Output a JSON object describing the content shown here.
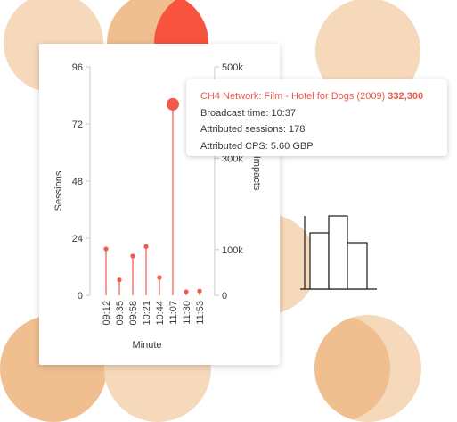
{
  "theme": {
    "accent": "#f0584a",
    "circle_light": "#f6d8bb",
    "circle_mid": "#efbf90",
    "circle_red": "#f8533f",
    "axis_color": "#c8c8c8",
    "text_color": "#3a3a3a"
  },
  "tooltip": {
    "title": "CH4 Network: Film - Hotel for Dogs (2009)",
    "impacts_value": "332,300",
    "broadcast_time": "Broadcast time: 10:37",
    "attributed_sessions": "Attributed sessions: 178",
    "attributed_cps": "Attributed CPS: 5.60 GBP"
  },
  "chart_data": {
    "type": "lollipop",
    "xlabel": "Minute",
    "ylabel_left": "Sessions",
    "ylabel_right": "Impacts",
    "categories": [
      "09:12",
      "09:35",
      "09:58",
      "10:21",
      "10:44",
      "11:07",
      "11:30",
      "11:53"
    ],
    "left_axis": {
      "range": [
        0,
        96
      ],
      "ticks": [
        "0",
        "24",
        "48",
        "72",
        "96"
      ]
    },
    "right_axis": {
      "range": [
        0,
        500000
      ],
      "ticks": [
        "0",
        "100k",
        "300k",
        "500k"
      ],
      "tick_values": [
        0,
        100000,
        300000,
        500000
      ]
    },
    "series": [
      {
        "values": [
          19.5,
          6.5,
          16.5,
          20.5,
          7.5,
          80.3,
          1.5,
          1.8
        ],
        "highlighted_index": 5
      }
    ],
    "grid": false
  }
}
